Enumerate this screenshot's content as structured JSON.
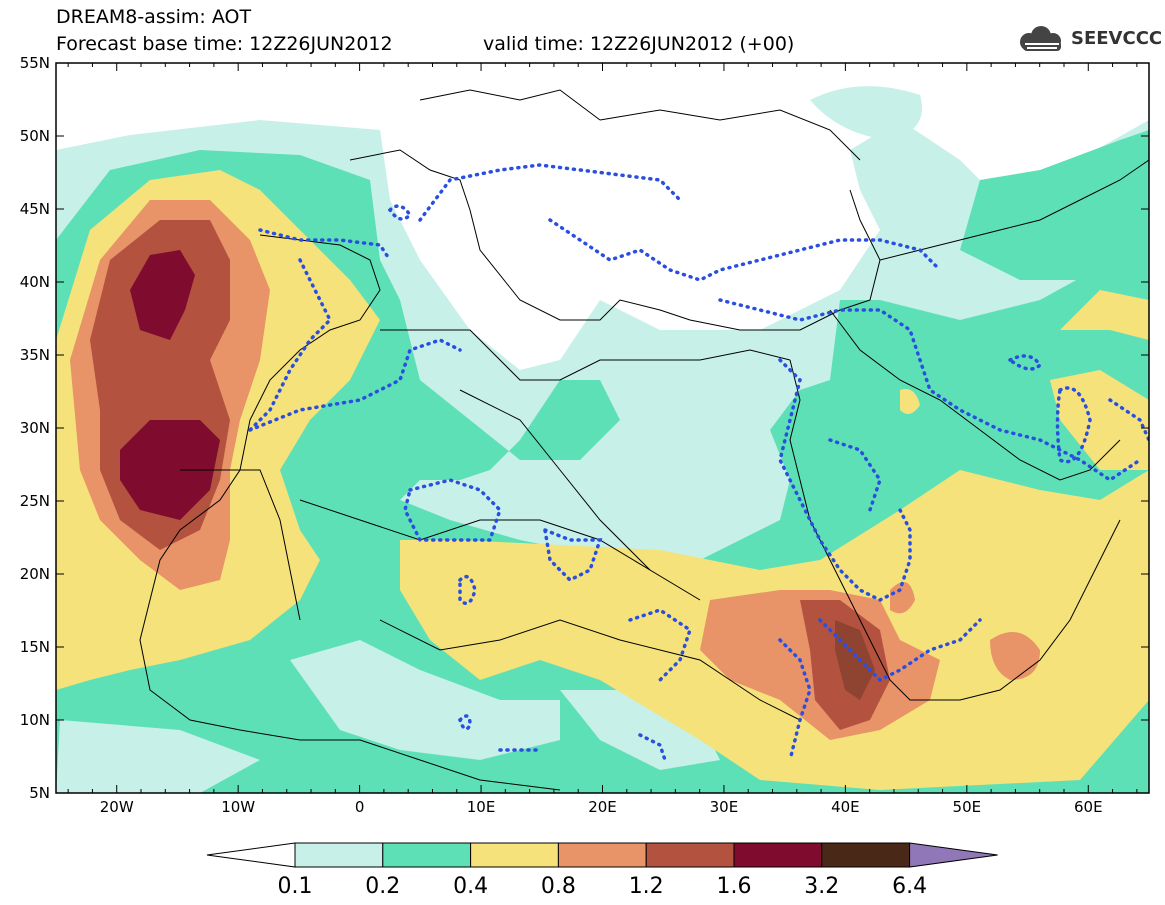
{
  "header": {
    "title_line1": "DREAM8-assim: AOT",
    "title_line2": "Forecast base time: 12Z26JUN2012",
    "valid_time": "valid time: 12Z26JUN2012 (+00)",
    "logo_text": "SEEVCCC"
  },
  "map": {
    "lat_labels": [
      "55N",
      "50N",
      "45N",
      "40N",
      "35N",
      "30N",
      "25N",
      "20N",
      "15N",
      "10N",
      "5N"
    ],
    "lon_labels": [
      "20W",
      "10W",
      "0",
      "10E",
      "20E",
      "30E",
      "40E",
      "50E",
      "60E"
    ],
    "extent": {
      "lon": [
        -25,
        65
      ],
      "lat": [
        5,
        55
      ]
    }
  },
  "legend": {
    "levels": [
      "0.1",
      "0.2",
      "0.4",
      "0.8",
      "1.2",
      "1.6",
      "3.2",
      "6.4"
    ],
    "colors": [
      "#ffffff",
      "#c7f0e8",
      "#5ee0b6",
      "#f5e27a",
      "#e89368",
      "#b3533f",
      "#7f0b2e",
      "#4a2818",
      "#9077b7"
    ]
  }
}
